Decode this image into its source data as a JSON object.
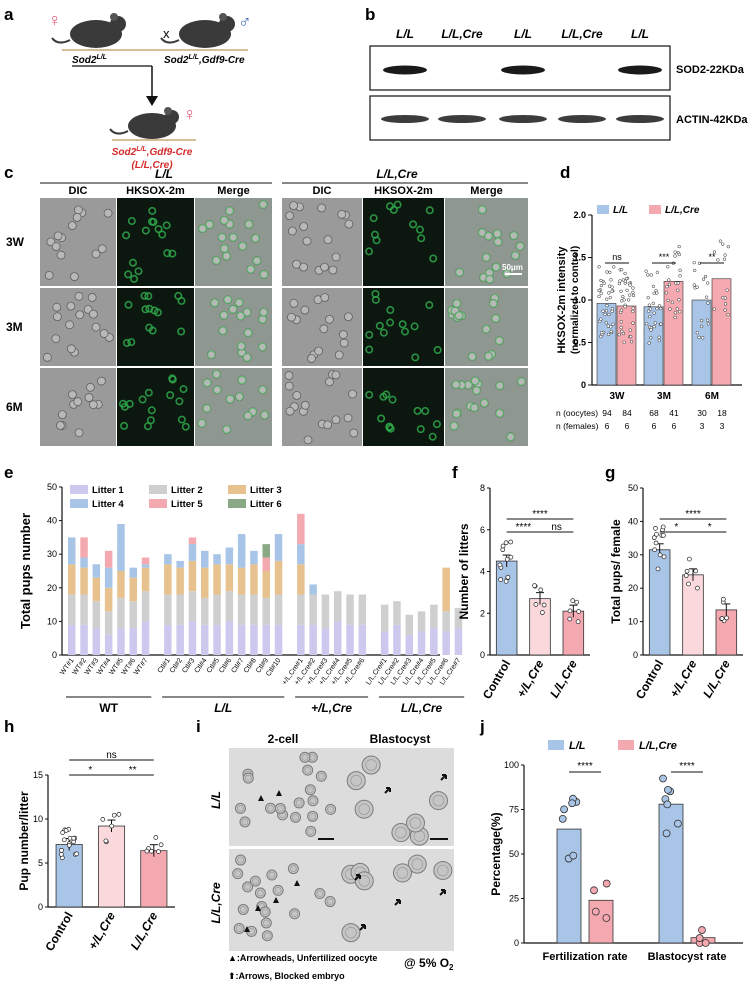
{
  "panels": {
    "a": {
      "letter": "a",
      "female_symbol": "♀",
      "male_symbol": "♂",
      "cross": "x",
      "parent_left": "Sod2",
      "parent_left_sup": "L/L",
      "parent_right": "Sod2",
      "parent_right_sup": "L/L",
      "parent_right_suffix": ",Gdf9-Cre",
      "offspring_line1": "Sod2",
      "offspring_sup": "L/L",
      "offspring_suffix": ",Gdf9-Cre",
      "offspring_line2": "(L/L,Cre)"
    },
    "b": {
      "letter": "b",
      "lanes": [
        "L/L",
        "L/L,Cre",
        "L/L",
        "L/L,Cre",
        "L/L"
      ],
      "band1_label": "SOD2-22KDa",
      "band2_label": "ACTIN-42KDa"
    },
    "c": {
      "letter": "c",
      "group_left": "L/L",
      "group_right": "L/L,Cre",
      "columns": [
        "DIC",
        "HKSOX-2m",
        "Merge",
        "DIC",
        "HKSOX-2m",
        "Merge"
      ],
      "rows": [
        "3W",
        "3M",
        "6M"
      ],
      "scale_bar": "50μm"
    },
    "d": {
      "letter": "d"
    },
    "e": {
      "letter": "e"
    },
    "f": {
      "letter": "f"
    },
    "g": {
      "letter": "g"
    },
    "h": {
      "letter": "h"
    },
    "i": {
      "letter": "i",
      "col1": "2-cell",
      "col2": "Blastocyst",
      "row1": "L/L",
      "row2": "L/L,Cre",
      "legend1": "▲:Arrowheads, Unfertilized oocyte",
      "legend2": "⬆:Arrows, Blocked embryo",
      "condition": "@ 5% O",
      "condition_sub": "2"
    },
    "j": {
      "letter": "j"
    }
  },
  "colors": {
    "ll_blue": "#a8c4e6",
    "llcre_pink": "#f4a9b0",
    "control_blue": "#a8c4e6",
    "plcre_pink": "#fbd8dc",
    "litter1": "#ccc8ee",
    "litter2": "#cfcfcf",
    "litter3": "#e7c28f",
    "litter4": "#a8c4e6",
    "litter5": "#f4a9b0",
    "litter6": "#8aa885"
  },
  "chart_data": [
    {
      "panel": "d",
      "type": "bar",
      "ylabel": "HKSOX-2m intensity",
      "ylabel2": "(normalized to control)",
      "ylim": [
        0,
        2.0
      ],
      "yticks": [
        0,
        0.5,
        1.0,
        1.5,
        2.0
      ],
      "ytick_labels": [
        "0",
        "0.5",
        "1.0",
        "1.5",
        "2.0"
      ],
      "categories": [
        "3W",
        "3M",
        "6M"
      ],
      "series": [
        {
          "name": "L/L",
          "values": [
            0.96,
            0.92,
            1.0
          ]
        },
        {
          "name": "L/L,Cre",
          "values": [
            0.93,
            1.22,
            1.25
          ]
        }
      ],
      "significance": [
        "ns",
        "***",
        "**"
      ],
      "n_oocytes_label": "n (oocytes)",
      "n_oocytes": [
        "94",
        "84",
        "68",
        "41",
        "30",
        "18"
      ],
      "n_females_label": "n (females)",
      "n_females": [
        "6",
        "6",
        "6",
        "6",
        "3",
        "3"
      ]
    },
    {
      "panel": "e",
      "type": "bar",
      "stacked": true,
      "ylabel": "Total pups number",
      "ylim": [
        0,
        50
      ],
      "yticks": [
        0,
        10,
        20,
        30,
        40,
        50
      ],
      "legend": [
        "Litter 1",
        "Litter 2",
        "Litter 3",
        "Litter 4",
        "Litter 5",
        "Litter 6"
      ],
      "groups": [
        "WT",
        "L/L",
        "+/L,Cre",
        "L/L,Cre"
      ],
      "categories": [
        "WT#1",
        "WT#2",
        "WT#3",
        "WT#4",
        "WT#5",
        "WT#6",
        "WT#7",
        "Ctl#1",
        "Ctl#2",
        "Ctl#3",
        "Ctl#4",
        "Ctl#5",
        "Ctl#6",
        "Ctl#7",
        "Ctl#8",
        "Ctl#9",
        "Ctl#10",
        "+/L,Cre#1",
        "+/L,Cre#2",
        "+/L,Cre#3",
        "+/L,Cre#4",
        "+/L,Cre#5",
        "+/L,Cre#6",
        "L/L,Cre#1",
        "L/L,Cre#2",
        "L/L,Cre#3",
        "L/L,Cre#4",
        "L/L,Cre#5",
        "L/L,Cre#6",
        "L/L,Cre#7"
      ],
      "series": [
        {
          "name": "Litter 1",
          "values": [
            9,
            9,
            8,
            6,
            8,
            8,
            10,
            9,
            9,
            10,
            9,
            9,
            10,
            9,
            9,
            9,
            9,
            9,
            9,
            8,
            10,
            9,
            9,
            7,
            9,
            6,
            7,
            8,
            7,
            8
          ]
        },
        {
          "name": "Litter 2",
          "values": [
            9,
            9,
            8,
            7,
            9,
            8,
            9,
            9,
            9,
            9,
            8,
            9,
            9,
            9,
            9,
            8,
            9,
            9,
            9,
            10,
            9,
            9,
            9,
            8,
            7,
            6,
            6,
            7,
            6,
            6
          ]
        },
        {
          "name": "Litter 3",
          "values": [
            9,
            8,
            7,
            7,
            8,
            7,
            7,
            9,
            8,
            9,
            9,
            9,
            8,
            8,
            9,
            8,
            10,
            9,
            0,
            0,
            0,
            0,
            0,
            0,
            0,
            0,
            0,
            0,
            13,
            0
          ]
        },
        {
          "name": "Litter 4",
          "values": [
            8,
            3,
            4,
            6,
            14,
            3,
            1,
            3,
            2,
            5,
            5,
            3,
            5,
            10,
            4,
            0,
            8,
            6,
            3,
            0,
            0,
            0,
            0,
            0,
            0,
            0,
            0,
            0,
            0,
            0
          ]
        },
        {
          "name": "Litter 5",
          "values": [
            0,
            6,
            0,
            5,
            0,
            0,
            2,
            0,
            0,
            2,
            0,
            0,
            0,
            0,
            0,
            4,
            0,
            9,
            0,
            0,
            0,
            0,
            0,
            0,
            0,
            0,
            0,
            0,
            0,
            0
          ]
        },
        {
          "name": "Litter 6",
          "values": [
            0,
            0,
            0,
            0,
            0,
            0,
            0,
            0,
            0,
            0,
            0,
            0,
            0,
            0,
            0,
            4,
            0,
            0,
            0,
            0,
            0,
            0,
            0,
            0,
            0,
            0,
            0,
            0,
            0,
            0
          ]
        }
      ]
    },
    {
      "panel": "f",
      "type": "bar",
      "ylabel": "Number of litters",
      "ylim": [
        0,
        8
      ],
      "yticks": [
        0,
        2,
        4,
        6,
        8
      ],
      "categories": [
        "Control",
        "+/L,Cre",
        "L/L,Cre"
      ],
      "values": [
        4.5,
        2.7,
        2.1
      ],
      "significance": [
        {
          "pair": "Control-+/L,Cre",
          "label": "****"
        },
        {
          "pair": "+/L,Cre-L/L,Cre",
          "label": "ns"
        },
        {
          "pair": "Control-L/L,Cre",
          "label": "****"
        }
      ]
    },
    {
      "panel": "g",
      "type": "bar",
      "ylabel": "Total pups/ female",
      "ylim": [
        0,
        50
      ],
      "yticks": [
        0,
        10,
        20,
        30,
        40,
        50
      ],
      "categories": [
        "Control",
        "+/L,Cre",
        "L/L,Cre"
      ],
      "values": [
        31.5,
        24,
        13.5
      ],
      "significance": [
        {
          "pair": "Control-+/L,Cre",
          "label": "*"
        },
        {
          "pair": "+/L,Cre-L/L,Cre",
          "label": "*"
        },
        {
          "pair": "Control-L/L,Cre",
          "label": "****"
        }
      ]
    },
    {
      "panel": "h",
      "type": "bar",
      "ylabel": "Pup number/litter",
      "ylim": [
        0,
        15
      ],
      "yticks": [
        0,
        5,
        10,
        15
      ],
      "categories": [
        "Control",
        "+/L,Cre",
        "L/L,Cre"
      ],
      "values": [
        7.1,
        9.2,
        6.4
      ],
      "significance": [
        {
          "pair": "Control-+/L,Cre",
          "label": "*"
        },
        {
          "pair": "+/L,Cre-L/L,Cre",
          "label": "**"
        },
        {
          "pair": "Control-L/L,Cre",
          "label": "ns"
        }
      ]
    },
    {
      "panel": "j",
      "type": "bar",
      "ylabel": "Percentage(%)",
      "ylim": [
        0,
        100
      ],
      "yticks": [
        0,
        25,
        50,
        75,
        100
      ],
      "categories": [
        "Fertilization rate",
        "Blastocyst rate"
      ],
      "series": [
        {
          "name": "L/L",
          "values": [
            64,
            78
          ]
        },
        {
          "name": "L/L,Cre",
          "values": [
            24,
            3
          ]
        }
      ],
      "significance": [
        "****",
        "****"
      ]
    }
  ]
}
